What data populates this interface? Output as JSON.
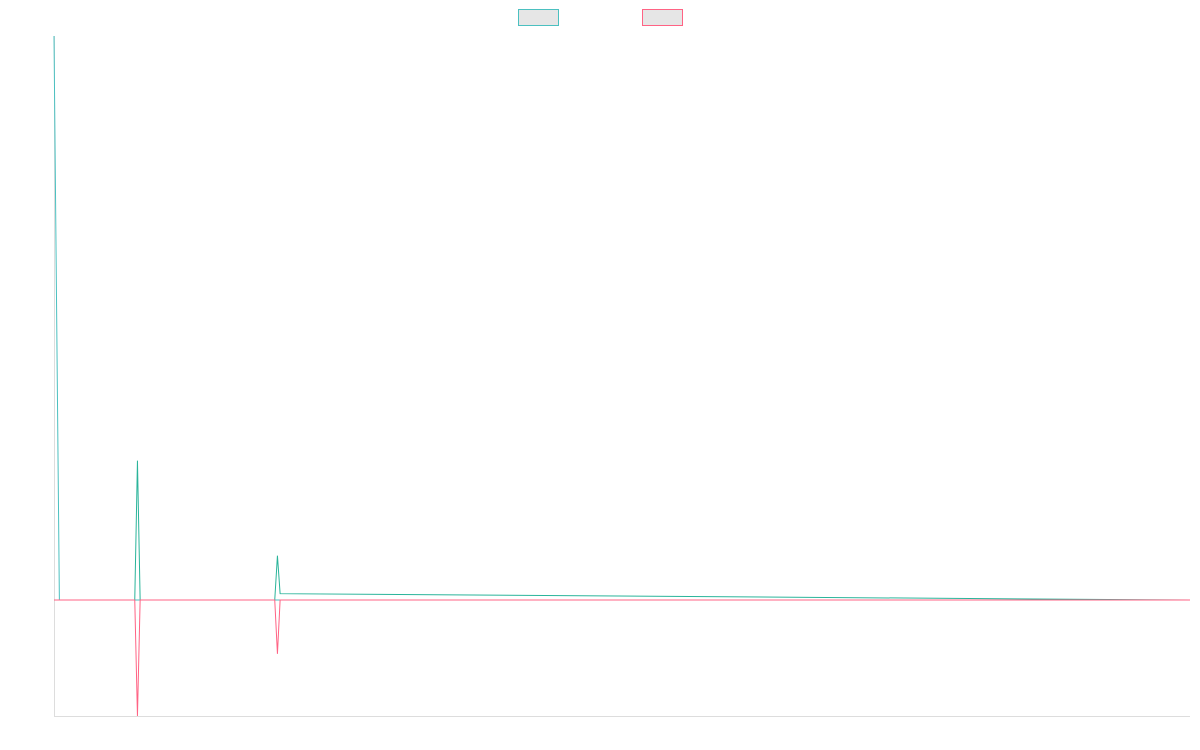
{
  "chart_data": {
    "type": "line",
    "title": "",
    "xlabel": "",
    "ylabel": "",
    "grid": false,
    "legend_position": "top-center",
    "x_count": 212,
    "ylim": [
      -1.83,
      8.9
    ],
    "series": [
      {
        "color": "#4bc0c0",
        "fill": "#e6e6e6",
        "points": [
          [
            0,
            8.9
          ],
          [
            1,
            0
          ],
          [
            211,
            0
          ]
        ]
      },
      {
        "color": "#2ab49a",
        "fill": "#e6e6e6",
        "points": [
          [
            0,
            0
          ],
          [
            15,
            0
          ],
          [
            15.5,
            2.2
          ],
          [
            16,
            0
          ],
          [
            41,
            0
          ],
          [
            41.5,
            0.7
          ],
          [
            42,
            0.1
          ],
          [
            211,
            0
          ]
        ]
      },
      {
        "color": "#ff6384",
        "fill": "#e6e6e6",
        "points": [
          [
            0,
            0
          ],
          [
            15,
            0
          ],
          [
            15.5,
            -1.83
          ],
          [
            16,
            0
          ],
          [
            41,
            0
          ],
          [
            41.5,
            -0.85
          ],
          [
            42,
            0
          ],
          [
            211,
            0
          ]
        ]
      }
    ],
    "legend": [
      {
        "color": "#4bc0c0",
        "fill": "#e6e6e6"
      },
      {
        "color": "#ff6384",
        "fill": "#e6e6e6"
      }
    ]
  }
}
